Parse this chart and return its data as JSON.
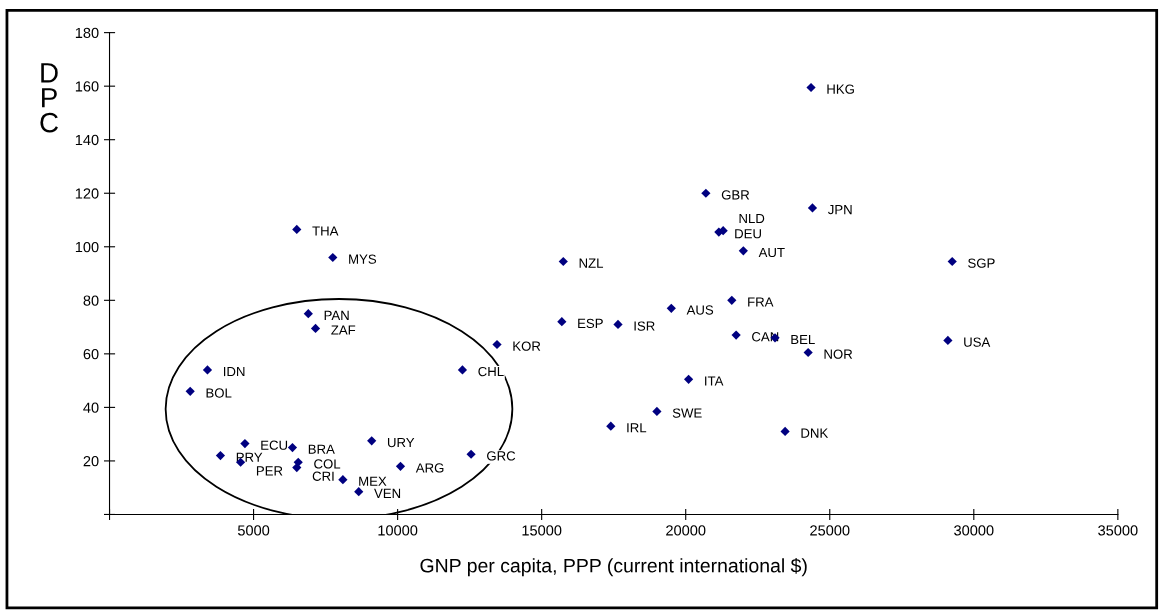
{
  "chart_data": {
    "type": "scatter",
    "xlabel": "GNP per capita, PPP (current international $)",
    "ylabel": "DPC",
    "xlim": [
      0,
      35000
    ],
    "xticks": [
      {
        "value": 0,
        "label": null
      },
      5000,
      10000,
      15000,
      20000,
      25000,
      30000,
      35000
    ],
    "ylim": [
      0,
      180
    ],
    "yticks": [
      {
        "value": 0,
        "label": null
      },
      20,
      40,
      60,
      80,
      100,
      120,
      140,
      160,
      180
    ],
    "grid": false,
    "legend": false,
    "marker": "diamond",
    "series": [
      {
        "color": "#000080",
        "x": [
          24350,
          20700,
          24400,
          21150,
          21300,
          22000,
          29250,
          15750,
          21600,
          19500,
          15700,
          17650,
          21750,
          23100,
          24250,
          29100,
          20100,
          19000,
          17400,
          23450,
          6500,
          7750,
          6900,
          7150,
          13450,
          3400,
          12250,
          2800,
          9100,
          4700,
          6350,
          12550,
          3850,
          4550,
          6550,
          10100,
          6500,
          8100,
          8650
        ],
        "values": [
          159.5,
          120,
          114.5,
          105.5,
          106,
          98.5,
          94.5,
          94.5,
          80,
          77,
          72,
          71,
          67,
          66,
          60.5,
          65,
          50.5,
          38.5,
          33,
          31,
          106.5,
          96,
          75,
          69.5,
          63.5,
          54,
          54,
          46,
          27.5,
          26.5,
          25,
          22.5,
          22,
          19.5,
          19.5,
          18,
          17.5,
          13,
          8.5
        ]
      }
    ],
    "annotations": [
      {
        "text": "HKG",
        "x": 24350,
        "y": 159.5
      },
      {
        "text": "GBR",
        "x": 20700,
        "y": 120
      },
      {
        "text": "JPN",
        "x": 24400,
        "y": 114.5
      },
      {
        "text": "DEU",
        "x": 21150,
        "y": 105.5
      },
      {
        "text": "NLD",
        "x": 21300,
        "y": 106
      },
      {
        "text": "AUT",
        "x": 22000,
        "y": 98.5
      },
      {
        "text": "SGP",
        "x": 29250,
        "y": 94.5
      },
      {
        "text": "NZL",
        "x": 15750,
        "y": 94.5
      },
      {
        "text": "FRA",
        "x": 21600,
        "y": 80
      },
      {
        "text": "AUS",
        "x": 19500,
        "y": 77
      },
      {
        "text": "ESP",
        "x": 15700,
        "y": 72
      },
      {
        "text": "ISR",
        "x": 17650,
        "y": 71
      },
      {
        "text": "CAN",
        "x": 21750,
        "y": 67
      },
      {
        "text": "BEL",
        "x": 23100,
        "y": 66
      },
      {
        "text": "NOR",
        "x": 24250,
        "y": 60.5
      },
      {
        "text": "USA",
        "x": 29100,
        "y": 65
      },
      {
        "text": "ITA",
        "x": 20100,
        "y": 50.5
      },
      {
        "text": "SWE",
        "x": 19000,
        "y": 38.5
      },
      {
        "text": "IRL",
        "x": 17400,
        "y": 33
      },
      {
        "text": "DNK",
        "x": 23450,
        "y": 31
      },
      {
        "text": "THA",
        "x": 6500,
        "y": 106.5
      },
      {
        "text": "MYS",
        "x": 7750,
        "y": 96
      },
      {
        "text": "PAN",
        "x": 6900,
        "y": 75
      },
      {
        "text": "ZAF",
        "x": 7150,
        "y": 69.5
      },
      {
        "text": "KOR",
        "x": 13450,
        "y": 63.5
      },
      {
        "text": "IDN",
        "x": 3400,
        "y": 54
      },
      {
        "text": "CHL",
        "x": 12250,
        "y": 54
      },
      {
        "text": "BOL",
        "x": 2800,
        "y": 46
      },
      {
        "text": "URY",
        "x": 9100,
        "y": 27.5
      },
      {
        "text": "ECU",
        "x": 4700,
        "y": 26.5
      },
      {
        "text": "BRA",
        "x": 6350,
        "y": 25
      },
      {
        "text": "GRC",
        "x": 12550,
        "y": 22.5
      },
      {
        "text": "PRY",
        "x": 3850,
        "y": 22
      },
      {
        "text": "PER",
        "x": 4550,
        "y": 19.5
      },
      {
        "text": "COL",
        "x": 6550,
        "y": 19.5
      },
      {
        "text": "ARG",
        "x": 10100,
        "y": 18
      },
      {
        "text": "CRI",
        "x": 6500,
        "y": 17.5
      },
      {
        "text": "MEX",
        "x": 8100,
        "y": 13
      },
      {
        "text": "VEN",
        "x": 8650,
        "y": 8.5
      }
    ]
  }
}
